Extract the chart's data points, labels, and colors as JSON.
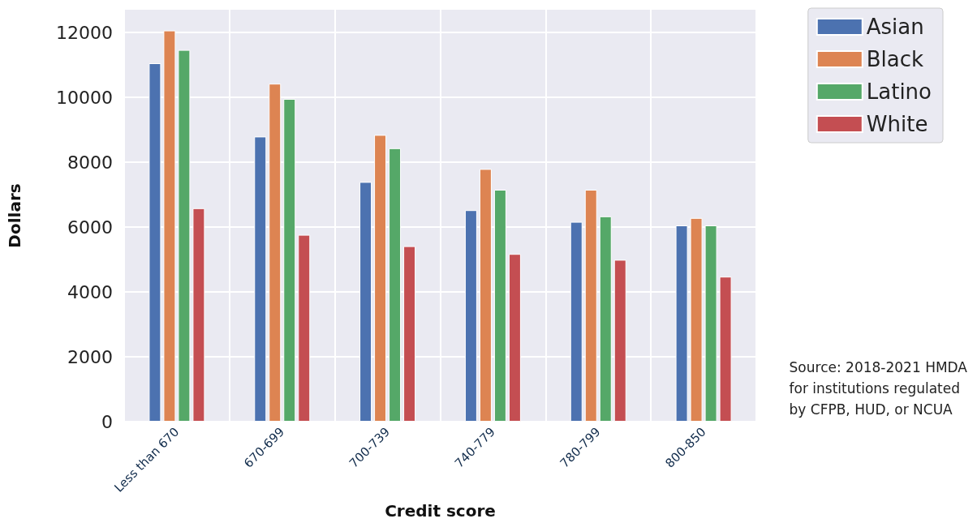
{
  "chart_data": {
    "type": "bar",
    "xlabel": "Credit score",
    "ylabel": "Dollars",
    "categories": [
      "Less than 670",
      "670-699",
      "700-739",
      "740-779",
      "780-799",
      "800-850"
    ],
    "series": [
      {
        "name": "Asian",
        "color": "#4c72b0",
        "values": [
          11050,
          8790,
          7390,
          6520,
          6160,
          6050
        ]
      },
      {
        "name": "Black",
        "color": "#dd8452",
        "values": [
          12060,
          10420,
          8840,
          7790,
          7150,
          6280
        ]
      },
      {
        "name": "Latino",
        "color": "#55a868",
        "values": [
          11460,
          9950,
          8430,
          7150,
          6330,
          6050
        ]
      },
      {
        "name": "White",
        "color": "#c44e52",
        "values": [
          6580,
          5760,
          5410,
          5170,
          4990,
          4470
        ]
      }
    ],
    "ylim": [
      0,
      12700
    ],
    "yticks": [
      0,
      2000,
      4000,
      6000,
      8000,
      10000,
      12000
    ],
    "grid": true,
    "legend": "top right",
    "annotations": [
      "Source: 2018-2021 HMDA\nfor institutions regulated\nby CFPB, HUD, or NCUA"
    ]
  }
}
